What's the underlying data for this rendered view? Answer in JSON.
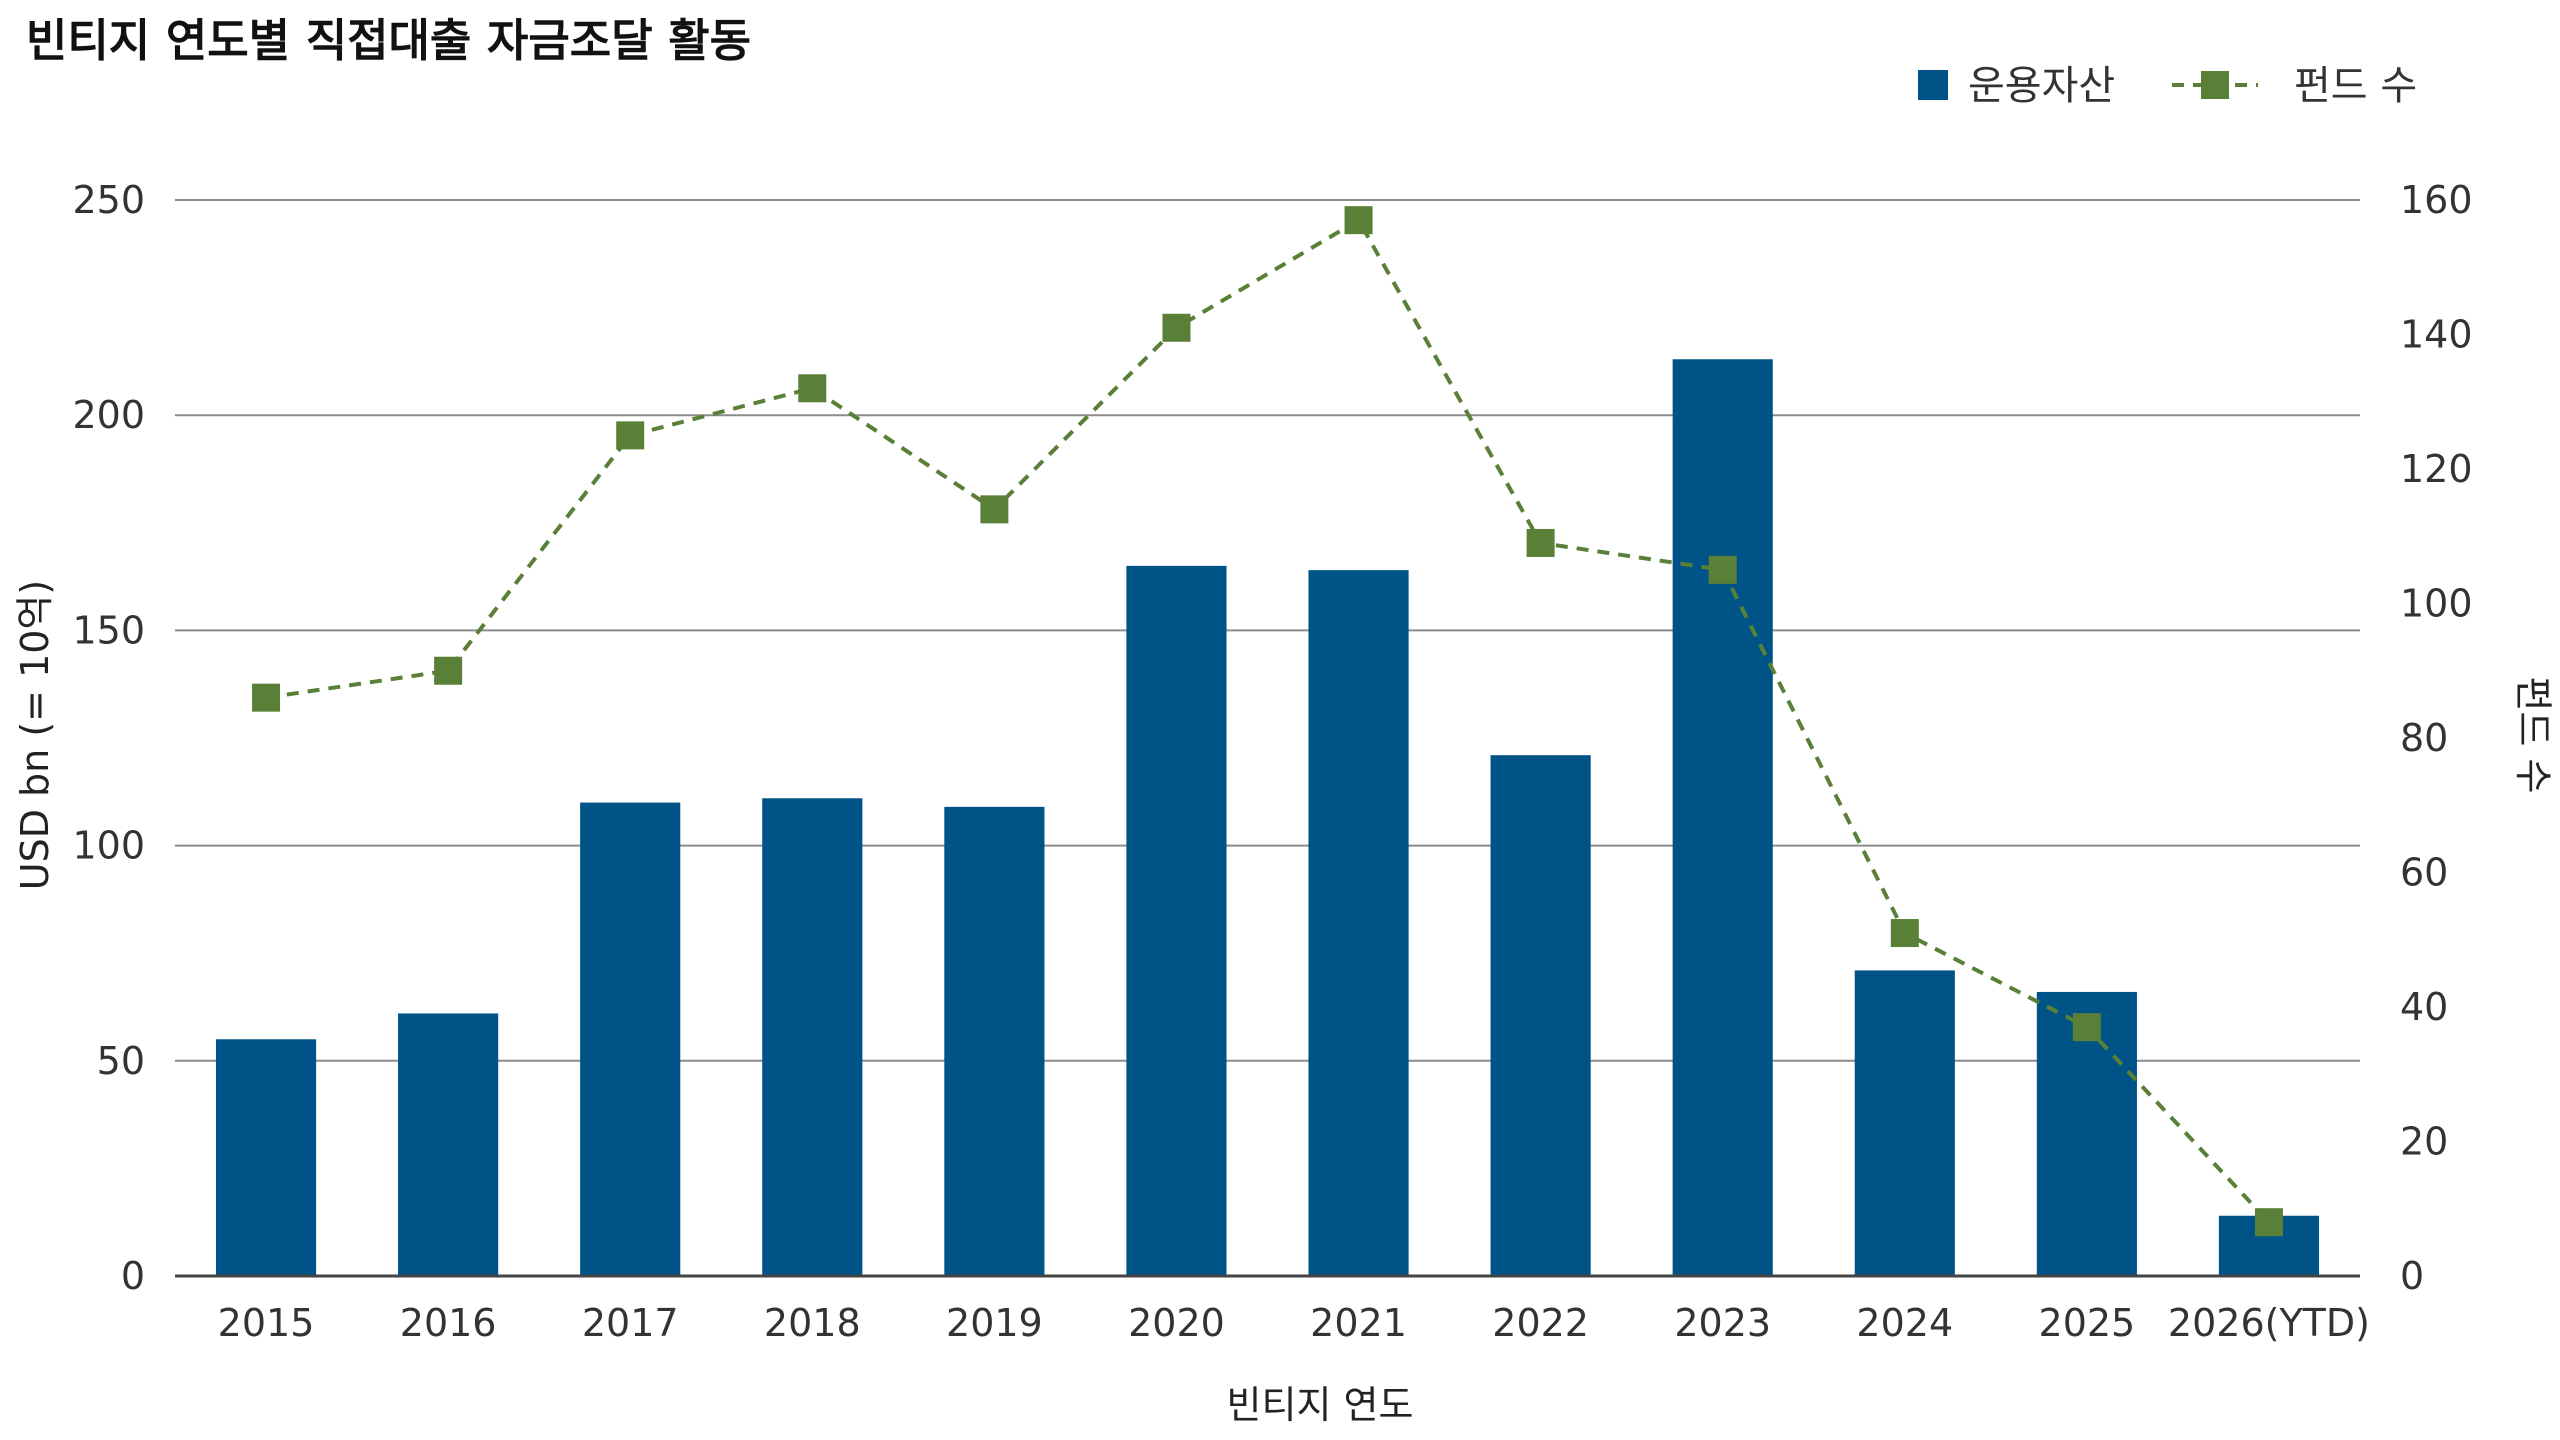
{
  "chart_data": {
    "type": "bar",
    "title": "빈티지 연도별 직접대출 자금조달 활동",
    "categories": [
      "2015",
      "2016",
      "2017",
      "2018",
      "2019",
      "2020",
      "2021",
      "2022",
      "2023",
      "2024",
      "2025",
      "2026(YTD)"
    ],
    "xlabel": "빈티지 연도",
    "ylabel": "USD bn (= 10억)",
    "y2label": "펀드 수",
    "ylim": [
      0,
      250
    ],
    "yticks": [
      0,
      50,
      100,
      150,
      200,
      250
    ],
    "y2lim": [
      0,
      160
    ],
    "y2ticks": [
      0,
      20,
      40,
      60,
      80,
      100,
      120,
      140,
      160
    ],
    "grid": true,
    "legend_position": "top-right",
    "series": [
      {
        "name": "운용자산",
        "type": "bar",
        "axis": "left",
        "color": "#005387",
        "values": [
          55,
          61,
          110,
          111,
          109,
          165,
          164,
          121,
          213,
          71,
          66,
          14
        ]
      },
      {
        "name": "펀드 수",
        "type": "line",
        "style": "dashed",
        "marker": "square",
        "axis": "right",
        "color": "#5a8038",
        "values": [
          86,
          90,
          125,
          132,
          114,
          141,
          157,
          109,
          105,
          51,
          37,
          8
        ]
      }
    ]
  }
}
